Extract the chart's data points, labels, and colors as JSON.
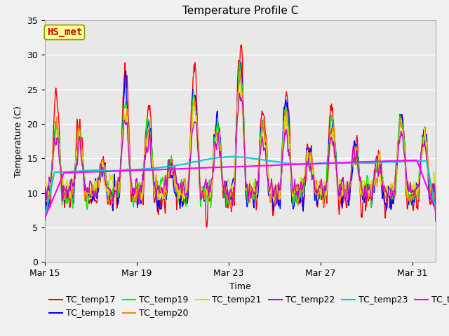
{
  "title": "Temperature Profile C",
  "xlabel": "Time",
  "ylabel": "Temperature (C)",
  "ylim": [
    0,
    35
  ],
  "yticks": [
    0,
    5,
    10,
    15,
    20,
    25,
    30,
    35
  ],
  "xlim_days": [
    0,
    17
  ],
  "x_tick_labels": [
    "Mar 15",
    "Mar 19",
    "Mar 23",
    "Mar 27",
    "Mar 31"
  ],
  "x_tick_positions": [
    0,
    4,
    8,
    12,
    16
  ],
  "annotation_text": "HS_met",
  "annotation_text_color": "#cc0000",
  "annotation_box_facecolor": "#ffff99",
  "annotation_box_edgecolor": "#999900",
  "series_colors": {
    "TC_temp17": "#ff0000",
    "TC_temp18": "#0000ff",
    "TC_temp19": "#00ee00",
    "TC_temp20": "#ff8800",
    "TC_temp21": "#dddd00",
    "TC_temp22": "#cc00cc",
    "TC_temp23": "#00cccc",
    "TC_temp24": "#ff00ff"
  },
  "fig_facecolor": "#f0f0f0",
  "plot_bg_color": "#e8e8e8",
  "grid_color": "#ffffff",
  "title_fontsize": 11,
  "axis_label_fontsize": 9,
  "tick_fontsize": 9,
  "legend_fontsize": 9,
  "linewidth": 1.0
}
